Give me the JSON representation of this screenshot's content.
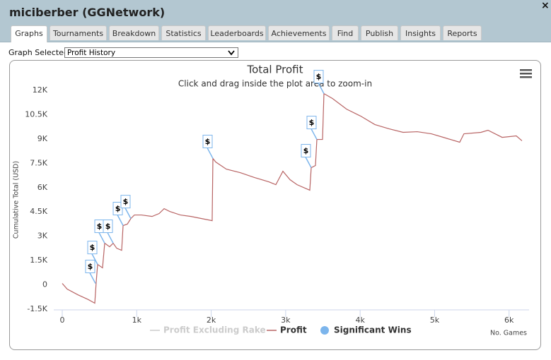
{
  "window": {
    "title": "miciberber (GGNetwork)",
    "close": "×"
  },
  "tabs": [
    "Graphs",
    "Tournaments",
    "Breakdown",
    "Statistics",
    "Leaderboards",
    "Achievements",
    "Find",
    "Publish",
    "Insights",
    "Reports"
  ],
  "graph_selector": {
    "label": "Graph Selected:",
    "value": "Profit History"
  },
  "chart_data": {
    "type": "line",
    "title": "Total Profit",
    "subtitle": "Click and drag inside the plot area to zoom-in",
    "y_label": "Cumulative Total (USD)",
    "x_label": "No. Games",
    "grid": false,
    "xlim": [
      0,
      6240
    ],
    "xticks": [
      0,
      {
        "value": 1000,
        "label": "1k"
      },
      {
        "value": 2000,
        "label": "2k"
      },
      {
        "value": 3000,
        "label": "3k"
      },
      {
        "value": 4000,
        "label": "4k"
      },
      {
        "value": 5000,
        "label": "5k"
      },
      {
        "value": 6000,
        "label": "6k"
      }
    ],
    "ylim": [
      -1500,
      12000
    ],
    "yticks": [
      {
        "value": -1500,
        "label": "-1.5K"
      },
      0,
      {
        "value": 1500,
        "label": "1.5K"
      },
      {
        "value": 3000,
        "label": "3K"
      },
      {
        "value": 4500,
        "label": "4.5K"
      },
      {
        "value": 6000,
        "label": "6K"
      },
      {
        "value": 7500,
        "label": "7.5K"
      },
      {
        "value": 9000,
        "label": "9K"
      },
      {
        "value": 10500,
        "label": "10.5K"
      },
      {
        "value": 12000,
        "label": "12K"
      }
    ],
    "series": [
      {
        "name": "Profit Excluding Rake",
        "color": "#cccccc",
        "visible": false
      },
      {
        "name": "Profit",
        "color": "#b86464",
        "x": [
          0,
          66,
          209,
          351,
          437,
          456,
          475,
          541,
          570,
          636,
          684,
          731,
          798,
          817,
          874,
          921,
          969,
          1064,
          1206,
          1301,
          1368,
          1443,
          1586,
          1728,
          1871,
          2013,
          2023,
          2061,
          2203,
          2393,
          2583,
          2773,
          2868,
          2963,
          3058,
          3153,
          3324,
          3343,
          3400,
          3419,
          3495,
          3514,
          3628,
          3818,
          4008,
          4197,
          4387,
          4577,
          4767,
          4957,
          5147,
          5337,
          5394,
          5622,
          5717,
          5907,
          6097,
          6173
        ],
        "values": [
          90,
          -260,
          -610,
          -910,
          -1130,
          170,
          1260,
          1050,
          2570,
          2350,
          2570,
          2260,
          2130,
          3660,
          3750,
          4090,
          4310,
          4310,
          4220,
          4400,
          4700,
          4530,
          4310,
          4220,
          4090,
          3960,
          7800,
          7580,
          7140,
          6920,
          6620,
          6360,
          6180,
          7010,
          6490,
          6180,
          5840,
          7230,
          7360,
          8970,
          8970,
          11800,
          11500,
          10840,
          10410,
          9890,
          9630,
          9410,
          9450,
          9320,
          9060,
          8800,
          9320,
          9410,
          9540,
          9100,
          9190,
          8890
        ]
      },
      {
        "name": "Significant Wins",
        "color": "#7cb5ec",
        "flag_text": "$",
        "x": [
          446,
          475,
          570,
          684,
          817,
          921,
          2023,
          3343,
          3419,
          3514
        ],
        "values": [
          90,
          1260,
          2570,
          2570,
          3660,
          4090,
          7800,
          7230,
          8970,
          11800
        ]
      }
    ]
  }
}
